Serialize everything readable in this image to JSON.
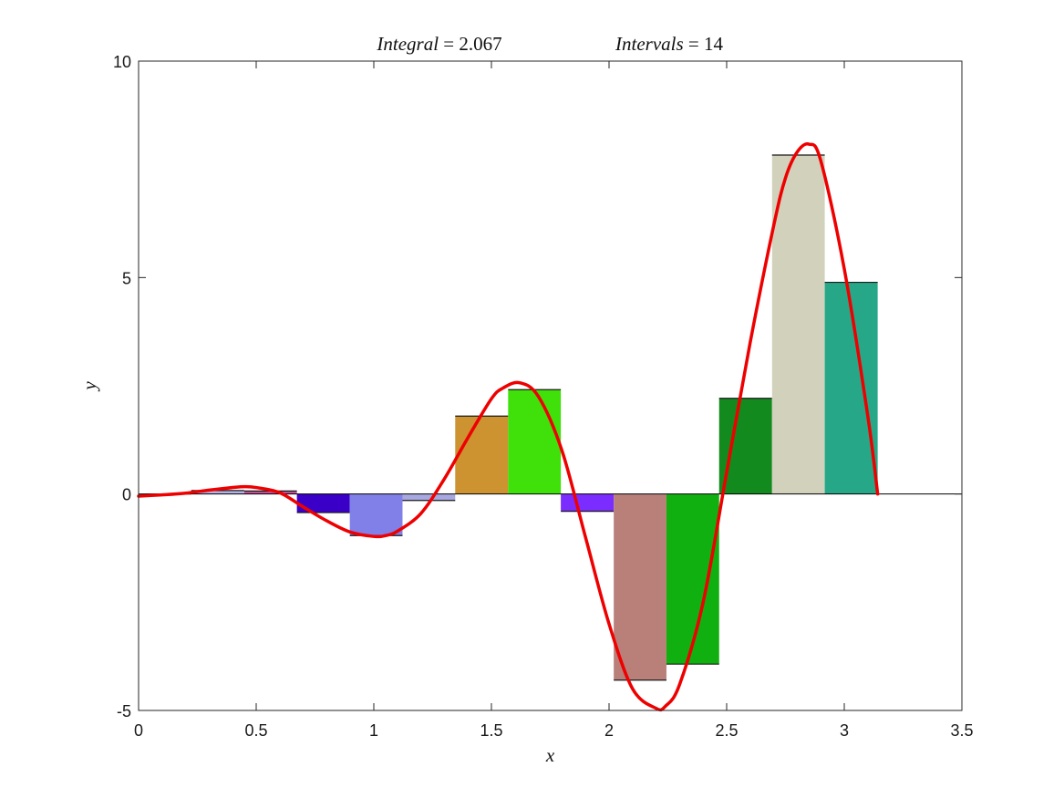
{
  "chart_data": {
    "type": "bar",
    "title_parts": [
      {
        "label": "Integral",
        "value": "2.067"
      },
      {
        "label": "Intervals",
        "value": "14"
      }
    ],
    "xlabel": "x",
    "ylabel": "y",
    "xlim": [
      0,
      3.5
    ],
    "ylim": [
      -5,
      10
    ],
    "x_ticks": [
      "0",
      "0.5",
      "1",
      "1.5",
      "2",
      "2.5",
      "3",
      "3.5"
    ],
    "y_ticks": [
      "-5",
      "0",
      "5",
      "10"
    ],
    "x_tick_values": [
      0,
      0.5,
      1,
      1.5,
      2,
      2.5,
      3,
      3.5
    ],
    "y_tick_values": [
      -5,
      0,
      5,
      10
    ],
    "grid": false,
    "bars": [
      {
        "x0": 0.0,
        "x1": 0.224,
        "value": 0.0,
        "color": "#4c4cb0"
      },
      {
        "x0": 0.224,
        "x1": 0.449,
        "value": 0.08,
        "color": "#b4b4e8"
      },
      {
        "x0": 0.449,
        "x1": 0.673,
        "value": 0.07,
        "color": "#c05098"
      },
      {
        "x0": 0.673,
        "x1": 0.898,
        "value": -0.43,
        "color": "#3a00c8"
      },
      {
        "x0": 0.898,
        "x1": 1.122,
        "value": -0.96,
        "color": "#8080e8"
      },
      {
        "x0": 1.122,
        "x1": 1.346,
        "value": -0.15,
        "color": "#a8a8e0"
      },
      {
        "x0": 1.346,
        "x1": 1.571,
        "value": 1.8,
        "color": "#cc9330"
      },
      {
        "x0": 1.571,
        "x1": 1.795,
        "value": 2.41,
        "color": "#40e00a"
      },
      {
        "x0": 1.795,
        "x1": 2.02,
        "value": -0.4,
        "color": "#7b2cff"
      },
      {
        "x0": 2.02,
        "x1": 2.244,
        "value": -4.3,
        "color": "#b88078"
      },
      {
        "x0": 2.244,
        "x1": 2.468,
        "value": -3.93,
        "color": "#10b010"
      },
      {
        "x0": 2.468,
        "x1": 2.693,
        "value": 2.21,
        "color": "#128a1e"
      },
      {
        "x0": 2.693,
        "x1": 2.917,
        "value": 7.83,
        "color": "#d2d2bc"
      },
      {
        "x0": 2.917,
        "x1": 3.142,
        "value": 4.89,
        "color": "#26a888"
      }
    ],
    "curve": {
      "color": "#ee0000",
      "x": [
        0,
        0.1,
        0.2,
        0.3,
        0.4,
        0.45,
        0.5,
        0.6,
        0.7,
        0.8,
        0.9,
        1.0,
        1.05,
        1.1,
        1.2,
        1.3,
        1.4,
        1.5,
        1.55,
        1.62,
        1.7,
        1.8,
        1.9,
        2.0,
        2.1,
        2.2,
        2.24,
        2.3,
        2.4,
        2.5,
        2.6,
        2.7,
        2.75,
        2.8,
        2.85,
        2.9,
        3.0,
        3.1,
        3.142
      ],
      "y": [
        -0.05,
        -0.02,
        0.02,
        0.09,
        0.15,
        0.17,
        0.15,
        0.03,
        -0.3,
        -0.62,
        -0.88,
        -0.98,
        -0.96,
        -0.86,
        -0.45,
        0.35,
        1.3,
        2.2,
        2.45,
        2.57,
        2.25,
        1.0,
        -1.0,
        -3.0,
        -4.5,
        -4.95,
        -4.9,
        -4.4,
        -2.5,
        0.5,
        3.5,
        6.2,
        7.3,
        7.9,
        8.08,
        7.7,
        5.2,
        1.8,
        0.0
      ]
    }
  }
}
